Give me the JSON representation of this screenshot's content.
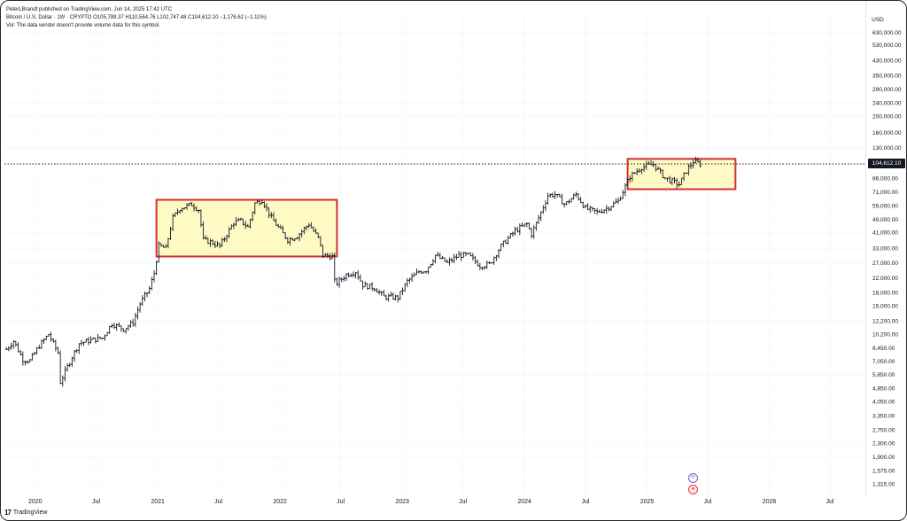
{
  "header": {
    "published": "PeterLBrandt published on TradingView.com, Jun 14, 2025 17:42 UTC",
    "symbol_line": "Bitcoin / U.S. Dollar · 1W · CRYPTO O105,789.37 H110,564.76 L102,747.48 C104,612.10 −1,176.62 (−1.11%)",
    "volume_note": "Vol: The data vendor doesn't provide volume data for this symbol."
  },
  "currency": "USD",
  "last_price_label": "104,612.10",
  "footer": {
    "logo": "17",
    "brand": "TradingView"
  },
  "colors": {
    "bar": "#131722",
    "box_fill": "#fff9c4",
    "box_stroke": "#d32f2f",
    "price_line": "#131722",
    "grid": "#f0f3fa"
  },
  "chart_data": {
    "type": "ohlc",
    "title": "Bitcoin / U.S. Dollar",
    "timeframe": "1W",
    "y_scale": "log",
    "ylim": [
      1100,
      800000
    ],
    "xlim": [
      "2019-10-01",
      "2026-10-15"
    ],
    "grid": true,
    "legend": "none",
    "y_ticks": [
      {
        "value": 630000,
        "label": "630,000.00"
      },
      {
        "value": 530000,
        "label": "530,000.00"
      },
      {
        "value": 430000,
        "label": "430,000.00"
      },
      {
        "value": 350000,
        "label": "350,000.00"
      },
      {
        "value": 290000,
        "label": "290,000.00"
      },
      {
        "value": 240000,
        "label": "240,000.00"
      },
      {
        "value": 200000,
        "label": "200,000.00"
      },
      {
        "value": 160000,
        "label": "160,000.00"
      },
      {
        "value": 130000,
        "label": "130,000.00"
      },
      {
        "value": 86000,
        "label": "86,000.00"
      },
      {
        "value": 71000,
        "label": "71,000.00"
      },
      {
        "value": 59000,
        "label": "59,000.00"
      },
      {
        "value": 49000,
        "label": "49,000.00"
      },
      {
        "value": 41000,
        "label": "41,000.00"
      },
      {
        "value": 33000,
        "label": "33,000.00"
      },
      {
        "value": 27000,
        "label": "27,000.00"
      },
      {
        "value": 22000,
        "label": "22,000.00"
      },
      {
        "value": 18000,
        "label": "18,000.00"
      },
      {
        "value": 15000,
        "label": "15,000.00"
      },
      {
        "value": 12200,
        "label": "12,200.00"
      },
      {
        "value": 10200,
        "label": "10,200.00"
      },
      {
        "value": 8450,
        "label": "8,450.00"
      },
      {
        "value": 7050,
        "label": "7,050.00"
      },
      {
        "value": 5850,
        "label": "5,850.00"
      },
      {
        "value": 4850,
        "label": "4,850.00"
      },
      {
        "value": 4050,
        "label": "4,050.00"
      },
      {
        "value": 3350,
        "label": "3,350.00"
      },
      {
        "value": 2750,
        "label": "2,750.00"
      },
      {
        "value": 2300,
        "label": "2,300.00"
      },
      {
        "value": 1900,
        "label": "1,900.00"
      },
      {
        "value": 1575,
        "label": "1,575.00"
      },
      {
        "value": 1315,
        "label": "1,315.00"
      }
    ],
    "x_ticks": [
      {
        "date": "2020-01-01",
        "label": "2020"
      },
      {
        "date": "2020-07-01",
        "label": "Jul"
      },
      {
        "date": "2021-01-01",
        "label": "2021"
      },
      {
        "date": "2021-07-01",
        "label": "Jul"
      },
      {
        "date": "2022-01-01",
        "label": "2022"
      },
      {
        "date": "2022-07-01",
        "label": "Jul"
      },
      {
        "date": "2023-01-01",
        "label": "2023"
      },
      {
        "date": "2023-07-01",
        "label": "Jul"
      },
      {
        "date": "2024-01-01",
        "label": "2024"
      },
      {
        "date": "2024-07-01",
        "label": "Jul"
      },
      {
        "date": "2025-01-01",
        "label": "2025"
      },
      {
        "date": "2025-07-01",
        "label": "Jul"
      },
      {
        "date": "2026-01-01",
        "label": "2026"
      },
      {
        "date": "2026-07-01",
        "label": "Jul"
      }
    ],
    "price_anchors": [
      [
        "2019-10-07",
        8300
      ],
      [
        "2019-10-28",
        9300
      ],
      [
        "2019-11-25",
        7200
      ],
      [
        "2019-12-16",
        7100
      ],
      [
        "2020-01-13",
        8700
      ],
      [
        "2020-02-10",
        10200
      ],
      [
        "2020-03-09",
        7900
      ],
      [
        "2020-03-16",
        5300
      ],
      [
        "2020-04-20",
        7500
      ],
      [
        "2020-05-11",
        9000
      ],
      [
        "2020-06-15",
        9400
      ],
      [
        "2020-07-20",
        9700
      ],
      [
        "2020-08-17",
        11800
      ],
      [
        "2020-09-21",
        10900
      ],
      [
        "2020-10-19",
        12000
      ],
      [
        "2020-11-09",
        15500
      ],
      [
        "2020-12-07",
        19000
      ],
      [
        "2020-12-21",
        23500
      ],
      [
        "2021-01-04",
        34000
      ],
      [
        "2021-01-25",
        33000
      ],
      [
        "2021-02-15",
        50000
      ],
      [
        "2021-03-08",
        57000
      ],
      [
        "2021-04-12",
        60000
      ],
      [
        "2021-05-03",
        56000
      ],
      [
        "2021-05-17",
        37000
      ],
      [
        "2021-06-07",
        36000
      ],
      [
        "2021-07-05",
        34000
      ],
      [
        "2021-07-26",
        40000
      ],
      [
        "2021-08-16",
        47000
      ],
      [
        "2021-09-06",
        48000
      ],
      [
        "2021-09-27",
        44000
      ],
      [
        "2021-10-18",
        61000
      ],
      [
        "2021-11-08",
        64000
      ],
      [
        "2021-12-06",
        50000
      ],
      [
        "2022-01-03",
        42000
      ],
      [
        "2022-01-24",
        37000
      ],
      [
        "2022-02-21",
        39000
      ],
      [
        "2022-03-28",
        46000
      ],
      [
        "2022-04-25",
        38000
      ],
      [
        "2022-05-09",
        30000
      ],
      [
        "2022-06-06",
        29500
      ],
      [
        "2022-06-13",
        21000
      ],
      [
        "2022-06-20",
        20500
      ],
      [
        "2022-07-18",
        23000
      ],
      [
        "2022-08-15",
        24000
      ],
      [
        "2022-09-05",
        20000
      ],
      [
        "2022-10-10",
        19200
      ],
      [
        "2022-11-07",
        17000
      ],
      [
        "2022-12-19",
        16800
      ],
      [
        "2023-01-16",
        21000
      ],
      [
        "2023-02-20",
        24000
      ],
      [
        "2023-03-13",
        24500
      ],
      [
        "2023-04-10",
        30000
      ],
      [
        "2023-05-15",
        27000
      ],
      [
        "2023-06-19",
        30000
      ],
      [
        "2023-07-17",
        30000
      ],
      [
        "2023-08-21",
        26000
      ],
      [
        "2023-09-18",
        26500
      ],
      [
        "2023-10-23",
        34000
      ],
      [
        "2023-12-04",
        42000
      ],
      [
        "2024-01-08",
        46000
      ],
      [
        "2024-01-22",
        40000
      ],
      [
        "2024-02-12",
        50000
      ],
      [
        "2024-03-11",
        68000
      ],
      [
        "2024-04-01",
        69000
      ],
      [
        "2024-05-01",
        60000
      ],
      [
        "2024-06-03",
        69000
      ],
      [
        "2024-07-01",
        57000
      ],
      [
        "2024-08-05",
        54000
      ],
      [
        "2024-09-02",
        57000
      ],
      [
        "2024-10-07",
        63000
      ],
      [
        "2024-11-11",
        88000
      ],
      [
        "2024-12-16",
        100000
      ],
      [
        "2025-01-20",
        104000
      ],
      [
        "2025-02-24",
        86000
      ],
      [
        "2025-04-07",
        79000
      ],
      [
        "2025-04-28",
        95000
      ],
      [
        "2025-05-19",
        108000
      ],
      [
        "2025-06-09",
        104612
      ]
    ],
    "boxes": [
      {
        "from": "2020-12-28",
        "to": "2022-06-20",
        "low": 29500,
        "high": 64000
      },
      {
        "from": "2024-11-04",
        "to": "2025-09-22",
        "low": 74000,
        "high": 112000
      }
    ],
    "last_price": 104612.1
  }
}
